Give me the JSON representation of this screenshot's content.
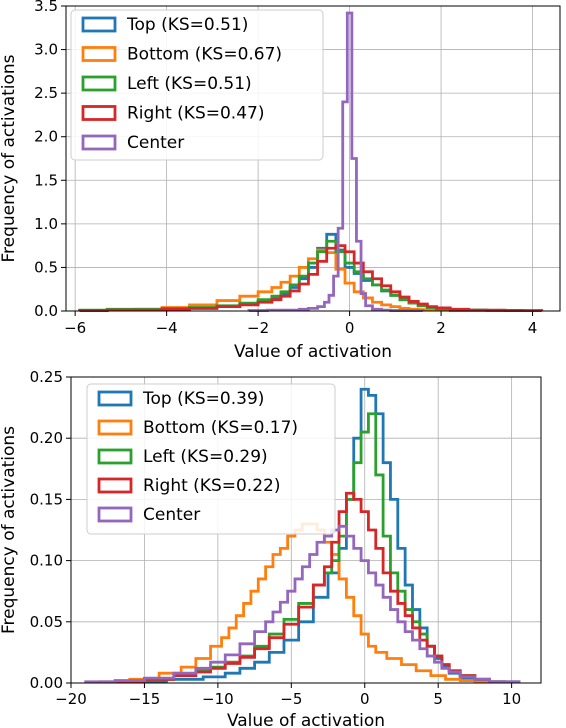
{
  "chart_data": [
    {
      "type": "histogram",
      "xlabel": "Value of activation",
      "ylabel": "Frequency of activations",
      "xlim": [
        -6.2,
        4.6
      ],
      "ylim": [
        0,
        3.5
      ],
      "xticks": [
        -6,
        -4,
        -2,
        0,
        2,
        4
      ],
      "xtick_labels": [
        "−6",
        "−4",
        "−2",
        "0",
        "2",
        "4"
      ],
      "yticks": [
        0,
        0.5,
        1.0,
        1.5,
        2.0,
        2.5,
        3.0,
        3.5
      ],
      "ytick_labels": [
        "0.0",
        "0.5",
        "1.0",
        "1.5",
        "2.0",
        "2.5",
        "3.0",
        "3.5"
      ],
      "grid": true,
      "legend_position": "top-left",
      "series": [
        {
          "name": "Top (KS=0.51)",
          "color": "#1f77b4",
          "x": [
            -5.6,
            -5.0,
            -4.4,
            -3.8,
            -3.2,
            -2.6,
            -2.2,
            -1.8,
            -1.6,
            -1.4,
            -1.2,
            -1.0,
            -0.8,
            -0.6,
            -0.4,
            -0.2,
            0,
            0.2,
            0.4,
            0.6,
            0.8,
            1.0,
            1.2,
            1.4,
            1.6,
            1.8,
            2.0,
            2.4,
            2.8,
            3.2,
            3.6
          ],
          "y": [
            0.005,
            0.01,
            0.01,
            0.02,
            0.03,
            0.05,
            0.08,
            0.11,
            0.15,
            0.2,
            0.27,
            0.37,
            0.5,
            0.72,
            0.88,
            0.7,
            0.5,
            0.43,
            0.35,
            0.3,
            0.23,
            0.18,
            0.13,
            0.09,
            0.06,
            0.04,
            0.025,
            0.015,
            0.01,
            0.005,
            0.005
          ]
        },
        {
          "name": "Bottom (KS=0.67)",
          "color": "#ff7f0e",
          "x": [
            -5.6,
            -5.0,
            -4.4,
            -3.8,
            -3.2,
            -2.6,
            -2.2,
            -1.8,
            -1.6,
            -1.4,
            -1.2,
            -1.0,
            -0.8,
            -0.6,
            -0.4,
            -0.2,
            0,
            0.2,
            0.4,
            0.6,
            0.8,
            1.0,
            1.2,
            1.4,
            1.6,
            2.0,
            2.4,
            2.8,
            3.2,
            3.6
          ],
          "y": [
            0.005,
            0.01,
            0.02,
            0.04,
            0.07,
            0.12,
            0.17,
            0.22,
            0.27,
            0.33,
            0.4,
            0.5,
            0.6,
            0.7,
            0.67,
            0.48,
            0.32,
            0.22,
            0.15,
            0.1,
            0.07,
            0.05,
            0.03,
            0.02,
            0.015,
            0.01,
            0.005,
            0.005,
            0.005,
            0.005
          ]
        },
        {
          "name": "Left (KS=0.51)",
          "color": "#2ca02c",
          "x": [
            -5.6,
            -5.0,
            -4.4,
            -3.8,
            -3.2,
            -2.6,
            -2.2,
            -1.8,
            -1.6,
            -1.4,
            -1.2,
            -1.0,
            -0.8,
            -0.6,
            -0.4,
            -0.2,
            0,
            0.2,
            0.4,
            0.6,
            0.8,
            1.0,
            1.2,
            1.4,
            1.6,
            1.8,
            2.0,
            2.4,
            2.8,
            3.2,
            3.6
          ],
          "y": [
            0.01,
            0.02,
            0.02,
            0.03,
            0.04,
            0.06,
            0.09,
            0.13,
            0.17,
            0.22,
            0.3,
            0.4,
            0.55,
            0.68,
            0.8,
            0.68,
            0.55,
            0.45,
            0.37,
            0.3,
            0.24,
            0.18,
            0.13,
            0.09,
            0.06,
            0.04,
            0.025,
            0.015,
            0.01,
            0.005,
            0.005
          ]
        },
        {
          "name": "Right (KS=0.47)",
          "color": "#d62728",
          "x": [
            -5.6,
            -5.0,
            -4.4,
            -3.8,
            -3.2,
            -2.6,
            -2.2,
            -1.8,
            -1.6,
            -1.4,
            -1.2,
            -1.0,
            -0.8,
            -0.6,
            -0.4,
            -0.2,
            0,
            0.2,
            0.4,
            0.6,
            0.8,
            1.0,
            1.2,
            1.4,
            1.6,
            1.8,
            2.0,
            2.4,
            2.8,
            3.2,
            3.6,
            4.0
          ],
          "y": [
            0.005,
            0.01,
            0.01,
            0.02,
            0.03,
            0.05,
            0.07,
            0.1,
            0.13,
            0.17,
            0.23,
            0.31,
            0.42,
            0.57,
            0.72,
            0.75,
            0.68,
            0.55,
            0.45,
            0.37,
            0.29,
            0.22,
            0.16,
            0.11,
            0.08,
            0.05,
            0.035,
            0.02,
            0.01,
            0.01,
            0.005,
            0.005
          ]
        },
        {
          "name": "Center",
          "color": "#9467bd",
          "x": [
            -2.0,
            -1.6,
            -1.2,
            -1.0,
            -0.8,
            -0.6,
            -0.5,
            -0.4,
            -0.3,
            -0.2,
            -0.1,
            0,
            0.1,
            0.2,
            0.3,
            0.4,
            0.6,
            0.8,
            1.0,
            1.4
          ],
          "y": [
            0.005,
            0.01,
            0.01,
            0.02,
            0.03,
            0.05,
            0.1,
            0.18,
            0.4,
            0.95,
            2.4,
            3.42,
            1.75,
            0.8,
            0.2,
            0.06,
            0.02,
            0.01,
            0.005,
            0.005
          ]
        }
      ]
    },
    {
      "type": "histogram",
      "xlabel": "Value of activation",
      "ylabel": "Frequency of activations",
      "xlim": [
        -20,
        12
      ],
      "ylim": [
        0,
        0.25
      ],
      "xticks": [
        -20,
        -15,
        -10,
        -5,
        0,
        5,
        10
      ],
      "xtick_labels": [
        "−20",
        "−15",
        "−10",
        "−5",
        "0",
        "5",
        "10"
      ],
      "yticks": [
        0,
        0.05,
        0.1,
        0.15,
        0.2,
        0.25
      ],
      "ytick_labels": [
        "0.00",
        "0.05",
        "0.10",
        "0.15",
        "0.20",
        "0.25"
      ],
      "grid": true,
      "legend_position": "top-left",
      "series": [
        {
          "name": "Top (KS=0.39)",
          "color": "#1f77b4",
          "x": [
            -15,
            -12,
            -10,
            -9,
            -8,
            -7,
            -6,
            -5,
            -4,
            -3,
            -2,
            -1.5,
            -1,
            -0.5,
            0,
            0.5,
            1,
            1.5,
            2,
            2.5,
            3,
            3.5,
            4,
            4.5,
            5,
            5.5,
            6,
            7,
            8,
            9,
            10
          ],
          "y": [
            0.001,
            0.003,
            0.005,
            0.008,
            0.012,
            0.017,
            0.025,
            0.035,
            0.05,
            0.07,
            0.09,
            0.11,
            0.15,
            0.2,
            0.24,
            0.235,
            0.22,
            0.18,
            0.15,
            0.11,
            0.08,
            0.06,
            0.045,
            0.03,
            0.02,
            0.013,
            0.008,
            0.004,
            0.002,
            0.001,
            0.001
          ]
        },
        {
          "name": "Bottom (KS=0.17)",
          "color": "#ff7f0e",
          "x": [
            -17,
            -15,
            -13,
            -12,
            -11,
            -10,
            -9.5,
            -9,
            -8.5,
            -8,
            -7.5,
            -7,
            -6.5,
            -6,
            -5.5,
            -5,
            -4.5,
            -4,
            -3.5,
            -3,
            -2.5,
            -2,
            -1.5,
            -1,
            -0.5,
            0,
            0.5,
            1,
            2,
            3,
            4,
            5,
            6,
            7,
            8
          ],
          "y": [
            0.001,
            0.003,
            0.008,
            0.013,
            0.02,
            0.03,
            0.037,
            0.045,
            0.055,
            0.065,
            0.075,
            0.085,
            0.095,
            0.105,
            0.11,
            0.12,
            0.125,
            0.13,
            0.13,
            0.125,
            0.115,
            0.105,
            0.085,
            0.07,
            0.055,
            0.04,
            0.03,
            0.025,
            0.02,
            0.015,
            0.01,
            0.006,
            0.003,
            0.002,
            0.001
          ]
        },
        {
          "name": "Left (KS=0.29)",
          "color": "#2ca02c",
          "x": [
            -16,
            -14,
            -12,
            -11,
            -10,
            -9,
            -8,
            -7,
            -6,
            -5,
            -4,
            -3,
            -2.5,
            -2,
            -1.5,
            -1,
            -0.5,
            0,
            0.5,
            1,
            1.5,
            2,
            2.5,
            3,
            3.5,
            4,
            4.5,
            5,
            5.5,
            6,
            7,
            8,
            9
          ],
          "y": [
            0.001,
            0.003,
            0.007,
            0.01,
            0.013,
            0.017,
            0.022,
            0.03,
            0.04,
            0.052,
            0.065,
            0.08,
            0.09,
            0.1,
            0.12,
            0.15,
            0.18,
            0.205,
            0.22,
            0.17,
            0.12,
            0.09,
            0.075,
            0.06,
            0.05,
            0.04,
            0.03,
            0.022,
            0.015,
            0.01,
            0.006,
            0.003,
            0.001
          ]
        },
        {
          "name": "Right (KS=0.22)",
          "color": "#d62728",
          "x": [
            -16,
            -14,
            -12,
            -11,
            -10,
            -9,
            -8,
            -7,
            -6,
            -5,
            -4,
            -3,
            -2.5,
            -2,
            -1.5,
            -1,
            -0.5,
            0,
            0.5,
            1,
            1.5,
            2,
            2.5,
            3,
            3.5,
            4,
            4.5,
            5,
            5.5,
            6,
            7,
            8,
            9
          ],
          "y": [
            0.001,
            0.003,
            0.006,
            0.009,
            0.012,
            0.016,
            0.021,
            0.028,
            0.037,
            0.048,
            0.062,
            0.08,
            0.095,
            0.115,
            0.14,
            0.155,
            0.15,
            0.14,
            0.125,
            0.11,
            0.09,
            0.075,
            0.065,
            0.055,
            0.045,
            0.035,
            0.03,
            0.022,
            0.015,
            0.01,
            0.006,
            0.003,
            0.001
          ]
        },
        {
          "name": "Center",
          "color": "#9467bd",
          "x": [
            -18,
            -16,
            -14,
            -12,
            -11,
            -10,
            -9,
            -8,
            -7,
            -6.5,
            -6,
            -5.5,
            -5,
            -4.5,
            -4,
            -3.5,
            -3,
            -2.5,
            -2,
            -1.5,
            -1,
            -0.5,
            0,
            0.5,
            1,
            1.5,
            2,
            2.5,
            3,
            3.5,
            4,
            4.5,
            5,
            5.5,
            6,
            7,
            8,
            9,
            10
          ],
          "y": [
            0.001,
            0.002,
            0.004,
            0.008,
            0.012,
            0.017,
            0.023,
            0.032,
            0.042,
            0.05,
            0.058,
            0.066,
            0.075,
            0.085,
            0.095,
            0.105,
            0.115,
            0.12,
            0.125,
            0.128,
            0.12,
            0.11,
            0.1,
            0.09,
            0.08,
            0.07,
            0.06,
            0.05,
            0.042,
            0.035,
            0.028,
            0.022,
            0.017,
            0.012,
            0.009,
            0.005,
            0.003,
            0.001,
            0.001
          ]
        }
      ]
    }
  ]
}
